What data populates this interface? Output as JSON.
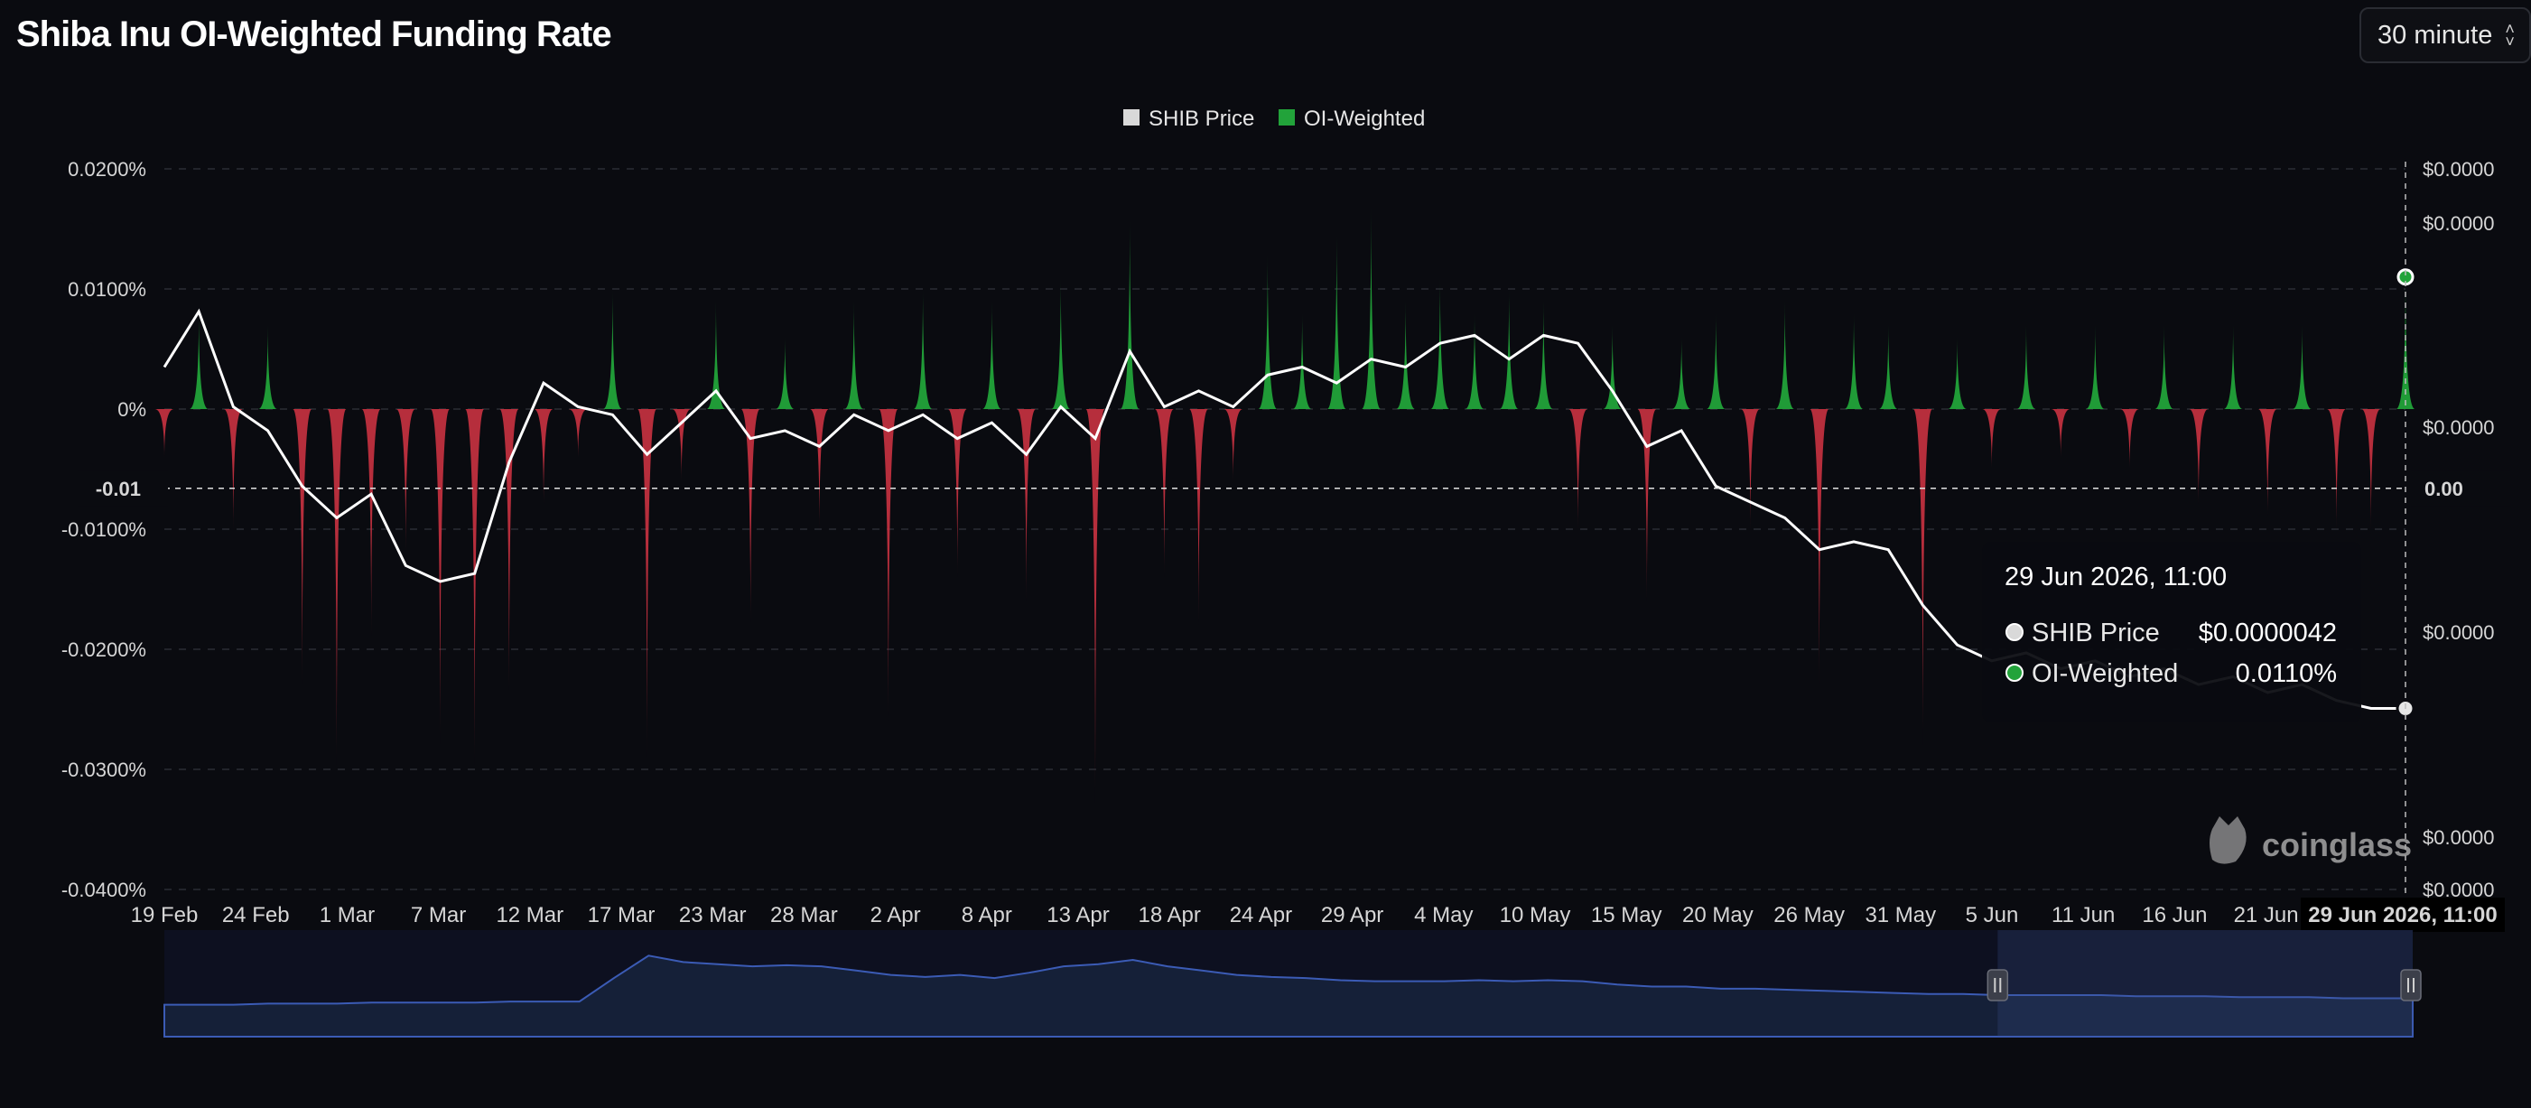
{
  "header": {
    "title": "Shiba Inu OI-Weighted Funding Rate",
    "interval_label": "30 minute"
  },
  "legend": {
    "items": [
      {
        "label": "SHIB Price",
        "color": "#d9d9d9"
      },
      {
        "label": "OI-Weighted",
        "color": "#22a33a"
      }
    ]
  },
  "colors": {
    "positive": "#22a33a",
    "negative": "#c0303f",
    "price_line": "#ffffff",
    "navigator_line": "#3b5bb5"
  },
  "crosshair": {
    "left_label": "-0.01",
    "right_label": "0.00",
    "x_label": "29 Jun 2026, 11:00"
  },
  "tooltip": {
    "title": "29 Jun 2026, 11:00",
    "rows": [
      {
        "label": "SHIB Price",
        "value": "$0.0000042",
        "color": "#d9d9d9"
      },
      {
        "label": "OI-Weighted",
        "value": "0.0110%",
        "color": "#22a33a"
      }
    ]
  },
  "watermark": "coinglass",
  "chart_data": {
    "type": "area",
    "title": "Shiba Inu OI-Weighted Funding Rate",
    "ylim": [
      -0.04,
      0.02
    ],
    "yticks": [
      "0.0200%",
      "0.0100%",
      "0%",
      "-0.0100%",
      "-0.0200%",
      "-0.0300%",
      "-0.0400%"
    ],
    "right_ticks": [
      "$0.0000",
      "$0.0000",
      "$0.0000",
      "$0.0000",
      "$0.0000",
      "$0.0000"
    ],
    "xticks": [
      "19 Feb",
      "24 Feb",
      "1 Mar",
      "7 Mar",
      "12 Mar",
      "17 Mar",
      "23 Mar",
      "28 Mar",
      "2 Apr",
      "8 Apr",
      "13 Apr",
      "18 Apr",
      "24 Apr",
      "29 Apr",
      "4 May",
      "10 May",
      "15 May",
      "20 May",
      "26 May",
      "31 May",
      "5 Jun",
      "11 Jun",
      "16 Jun",
      "21 Jun"
    ],
    "grid": true,
    "legend_position": "top-center",
    "series": [
      {
        "name": "OI-Weighted",
        "unit": "%",
        "x": [
          "2026-02-19",
          "2026-02-21",
          "2026-02-23",
          "2026-02-25",
          "2026-02-27",
          "2026-03-01",
          "2026-03-03",
          "2026-03-05",
          "2026-03-07",
          "2026-03-09",
          "2026-03-11",
          "2026-03-13",
          "2026-03-15",
          "2026-03-17",
          "2026-03-19",
          "2026-03-21",
          "2026-03-23",
          "2026-03-25",
          "2026-03-27",
          "2026-03-29",
          "2026-03-31",
          "2026-04-02",
          "2026-04-04",
          "2026-04-06",
          "2026-04-08",
          "2026-04-10",
          "2026-04-12",
          "2026-04-14",
          "2026-04-16",
          "2026-04-18",
          "2026-04-20",
          "2026-04-22",
          "2026-04-24",
          "2026-04-26",
          "2026-04-28",
          "2026-04-30",
          "2026-05-02",
          "2026-05-04",
          "2026-05-06",
          "2026-05-08",
          "2026-05-10",
          "2026-05-12",
          "2026-05-14",
          "2026-05-16",
          "2026-05-18",
          "2026-05-20",
          "2026-05-22",
          "2026-05-24",
          "2026-05-26",
          "2026-05-28",
          "2026-05-30",
          "2026-06-01",
          "2026-06-03",
          "2026-06-05",
          "2026-06-07",
          "2026-06-09",
          "2026-06-11",
          "2026-06-13",
          "2026-06-15",
          "2026-06-17",
          "2026-06-19",
          "2026-06-21",
          "2026-06-23",
          "2026-06-25",
          "2026-06-27",
          "2026-06-29"
        ],
        "values": [
          -0.004,
          0.008,
          -0.01,
          0.007,
          -0.023,
          -0.03,
          -0.019,
          -0.012,
          -0.028,
          -0.03,
          -0.024,
          -0.008,
          -0.004,
          0.01,
          -0.029,
          -0.006,
          0.009,
          -0.018,
          0.006,
          -0.01,
          0.009,
          -0.026,
          0.01,
          -0.014,
          0.009,
          -0.016,
          0.011,
          -0.033,
          0.016,
          -0.014,
          -0.018,
          -0.006,
          0.013,
          0.008,
          0.015,
          0.017,
          0.009,
          0.011,
          0.008,
          0.01,
          0.009,
          -0.01,
          0.007,
          -0.016,
          0.006,
          0.008,
          -0.01,
          0.009,
          -0.023,
          0.008,
          0.007,
          -0.028,
          0.006,
          -0.005,
          0.007,
          -0.004,
          0.007,
          -0.005,
          0.007,
          -0.008,
          0.007,
          -0.009,
          0.007,
          -0.01,
          -0.01,
          0.011
        ]
      },
      {
        "name": "SHIB Price",
        "unit": "$",
        "x": [
          "2026-02-19",
          "2026-02-21",
          "2026-02-23",
          "2026-02-25",
          "2026-02-27",
          "2026-03-01",
          "2026-03-03",
          "2026-03-05",
          "2026-03-07",
          "2026-03-09",
          "2026-03-11",
          "2026-03-13",
          "2026-03-15",
          "2026-03-17",
          "2026-03-19",
          "2026-03-21",
          "2026-03-23",
          "2026-03-25",
          "2026-03-27",
          "2026-03-29",
          "2026-03-31",
          "2026-04-02",
          "2026-04-04",
          "2026-04-06",
          "2026-04-08",
          "2026-04-10",
          "2026-04-12",
          "2026-04-14",
          "2026-04-16",
          "2026-04-18",
          "2026-04-20",
          "2026-04-22",
          "2026-04-24",
          "2026-04-26",
          "2026-04-28",
          "2026-04-30",
          "2026-05-02",
          "2026-05-04",
          "2026-05-06",
          "2026-05-08",
          "2026-05-10",
          "2026-05-12",
          "2026-05-14",
          "2026-05-16",
          "2026-05-18",
          "2026-05-20",
          "2026-05-22",
          "2026-05-24",
          "2026-05-26",
          "2026-05-28",
          "2026-05-30",
          "2026-06-01",
          "2026-06-03",
          "2026-06-05",
          "2026-06-07",
          "2026-06-09",
          "2026-06-11",
          "2026-06-13",
          "2026-06-15",
          "2026-06-17",
          "2026-06-19",
          "2026-06-21",
          "2026-06-23",
          "2026-06-25",
          "2026-06-27",
          "2026-06-29"
        ],
        "values": [
          8.5e-06,
          9.2e-06,
          8e-06,
          7.7e-06,
          7e-06,
          6.6e-06,
          6.9e-06,
          6e-06,
          5.8e-06,
          5.9e-06,
          7.3e-06,
          8.3e-06,
          8e-06,
          7.9e-06,
          7.4e-06,
          7.8e-06,
          8.2e-06,
          7.6e-06,
          7.7e-06,
          7.5e-06,
          7.9e-06,
          7.7e-06,
          7.9e-06,
          7.6e-06,
          7.8e-06,
          7.4e-06,
          8e-06,
          7.6e-06,
          8.7e-06,
          8e-06,
          8.2e-06,
          8e-06,
          8.4e-06,
          8.5e-06,
          8.3e-06,
          8.6e-06,
          8.5e-06,
          8.8e-06,
          8.9e-06,
          8.6e-06,
          8.9e-06,
          8.8e-06,
          8.2e-06,
          7.5e-06,
          7.7e-06,
          7e-06,
          6.8e-06,
          6.6e-06,
          6.2e-06,
          6.3e-06,
          6.2e-06,
          5.5e-06,
          5e-06,
          4.8e-06,
          4.9e-06,
          4.7e-06,
          4.8e-06,
          4.6e-06,
          4.7e-06,
          4.5e-06,
          4.6e-06,
          4.4e-06,
          4.5e-06,
          4.3e-06,
          4.2e-06,
          4.2e-06
        ]
      }
    ],
    "navigator": {
      "values": [
        0.3,
        0.3,
        0.3,
        0.31,
        0.31,
        0.31,
        0.32,
        0.32,
        0.32,
        0.32,
        0.33,
        0.33,
        0.33,
        0.55,
        0.76,
        0.7,
        0.68,
        0.66,
        0.67,
        0.66,
        0.62,
        0.58,
        0.56,
        0.58,
        0.55,
        0.6,
        0.66,
        0.68,
        0.72,
        0.66,
        0.62,
        0.58,
        0.56,
        0.55,
        0.53,
        0.52,
        0.52,
        0.52,
        0.53,
        0.52,
        0.53,
        0.52,
        0.49,
        0.47,
        0.47,
        0.45,
        0.45,
        0.44,
        0.43,
        0.42,
        0.41,
        0.4,
        0.4,
        0.39,
        0.39,
        0.39,
        0.39,
        0.38,
        0.38,
        0.38,
        0.37,
        0.37,
        0.37,
        0.36,
        0.36,
        0.36
      ],
      "selected_range": [
        "2026-06-05",
        "2026-06-29"
      ]
    }
  }
}
